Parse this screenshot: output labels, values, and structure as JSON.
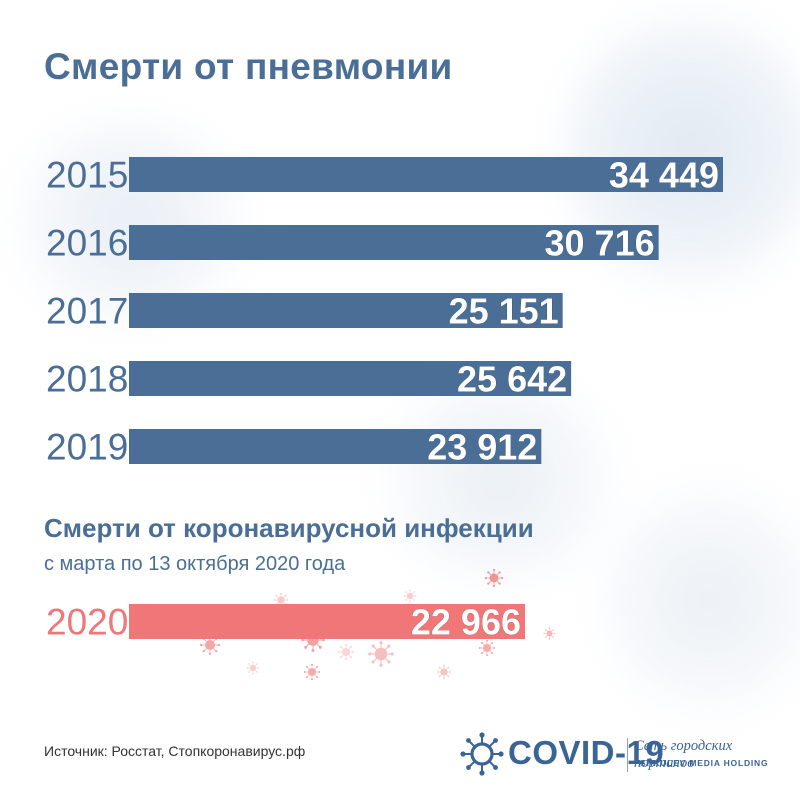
{
  "title": "Смерти от пневмонии",
  "chart_data": {
    "type": "bar",
    "orientation": "horizontal",
    "title": "Смерти от пневмонии",
    "categories": [
      "2015",
      "2016",
      "2017",
      "2018",
      "2019"
    ],
    "values": [
      34449,
      30716,
      25151,
      25642,
      23912
    ],
    "value_labels": [
      "34 449",
      "30 716",
      "25 151",
      "25 642",
      "23 912"
    ],
    "bar_color": "#4a6e96",
    "xlim": [
      0,
      34449
    ],
    "grid": false,
    "legend": "none",
    "highlight": {
      "title": "Смерти от коронавирусной инфекции",
      "subtitle": "с марта по 13 октября 2020 года",
      "category": "2020",
      "value": 22966,
      "value_label": "22 966",
      "bar_color": "#f07678"
    }
  },
  "source": "Источник: Росстат, Стопкоронавирус.рф",
  "logo": {
    "name": "COVID-19",
    "network": "Сеть городских порталов",
    "holding": "SHKULEV MEDIA HOLDING"
  },
  "colors": {
    "primary": "#4a6e96",
    "accent": "#f07678",
    "virus": "#f08a8a"
  },
  "icons": [
    "virus-icon",
    "covid-logo-icon"
  ]
}
